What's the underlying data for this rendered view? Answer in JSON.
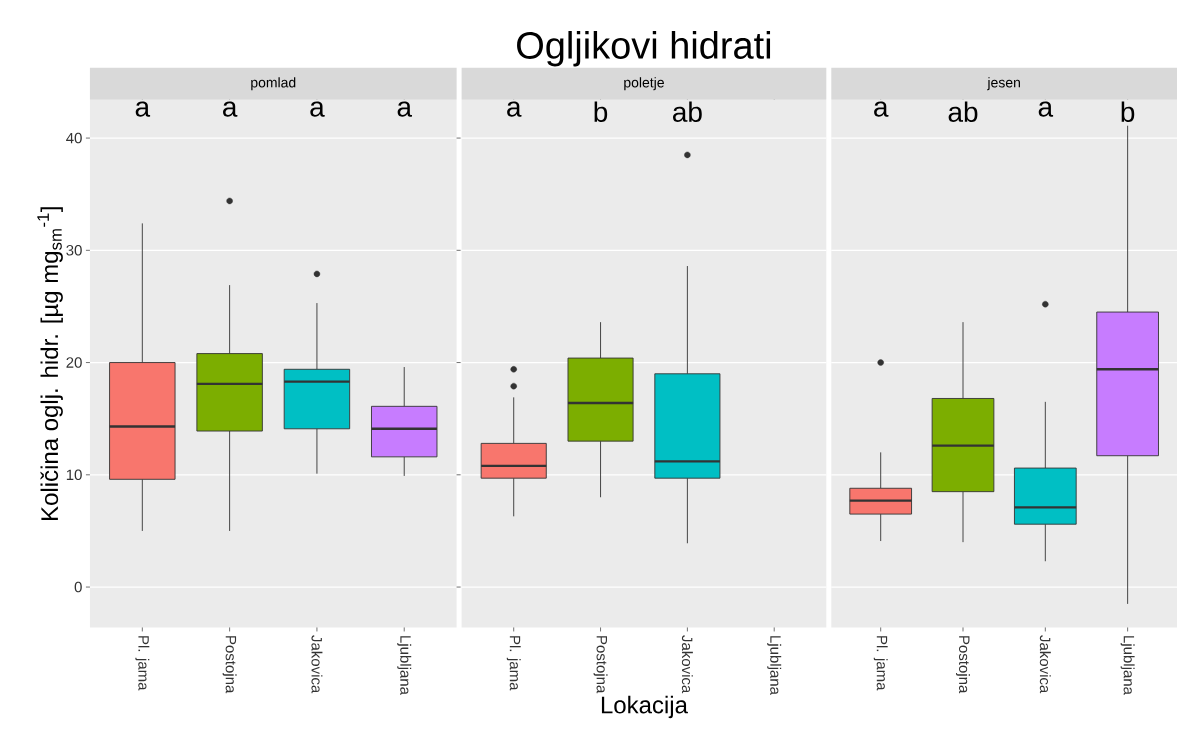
{
  "chart_data": [
    {
      "type": "box",
      "subtitle": "pomlad",
      "ylabel": "Količina oglj. hidr. [µg mg$_{sm}$$^{-1}$]",
      "categories": [
        "Pl. jama",
        "Postojna",
        "Jakovica",
        "Ljubljana"
      ],
      "colors": [
        "#f8766d",
        "#7cae00",
        "#00bfc4",
        "#c77cff"
      ],
      "boxes": [
        {
          "low": 5.0,
          "q1": 9.6,
          "median": 14.3,
          "q3": 20.0,
          "high": 32.4
        },
        {
          "low": 5.0,
          "q1": 13.9,
          "median": 18.1,
          "q3": 20.8,
          "high": 26.9,
          "outliers": [
            34.4
          ]
        },
        {
          "low": 10.1,
          "q1": 14.1,
          "median": 18.3,
          "q3": 19.4,
          "high": 25.3,
          "outliers": [
            27.9
          ]
        },
        {
          "low": 9.9,
          "q1": 11.6,
          "median": 14.1,
          "q3": 16.1,
          "high": 19.6
        }
      ],
      "ylim": [
        -3.6,
        43.4
      ],
      "yticks": [
        0,
        10,
        20,
        30,
        40
      ],
      "grid": "y",
      "annotations": [
        "a",
        "a",
        "a",
        "a"
      ]
    },
    {
      "type": "box",
      "title": "Ogljikovi hidrati",
      "subtitle": "poletje",
      "xlabel": "Lokacija",
      "categories": [
        "Pl. jama",
        "Postojna",
        "Jakovica",
        "Ljubljana"
      ],
      "colors": [
        "#f8766d",
        "#7cae00",
        "#00bfc4",
        "#c77cff"
      ],
      "boxes": [
        {
          "low": 6.3,
          "q1": 9.7,
          "median": 10.8,
          "q3": 12.8,
          "high": 16.9,
          "outliers": [
            17.9,
            19.4
          ]
        },
        {
          "low": 8.0,
          "q1": 13.0,
          "median": 16.4,
          "q3": 20.4,
          "high": 23.6
        },
        {
          "low": 3.9,
          "q1": 9.7,
          "median": 11.2,
          "q3": 19.0,
          "high": 28.6,
          "outliers": [
            38.5
          ]
        },
        null
      ],
      "ylim": [
        -3.6,
        43.4
      ],
      "yticks": [
        0,
        10,
        20,
        30,
        40
      ],
      "grid": "y",
      "tick_labels": "x",
      "annotations": [
        "a",
        "b",
        "ab"
      ]
    },
    {
      "type": "box",
      "subtitle": "jesen",
      "categories": [
        "Pl. jama",
        "Postojna",
        "Jakovica",
        "Ljubljana"
      ],
      "colors": [
        "#f8766d",
        "#7cae00",
        "#00bfc4",
        "#c77cff"
      ],
      "boxes": [
        {
          "low": 4.1,
          "q1": 6.5,
          "median": 7.7,
          "q3": 8.8,
          "high": 12.0,
          "outliers": [
            20.0
          ]
        },
        {
          "low": 4.0,
          "q1": 8.5,
          "median": 12.6,
          "q3": 16.8,
          "high": 23.6
        },
        {
          "low": 2.3,
          "q1": 5.6,
          "median": 7.1,
          "q3": 10.6,
          "high": 16.5,
          "outliers": [
            25.2
          ]
        },
        {
          "low": -1.5,
          "q1": 11.7,
          "median": 19.4,
          "q3": 24.5,
          "high": 41.1
        }
      ],
      "ylim": [
        -3.6,
        43.4
      ],
      "yticks": [
        0,
        10,
        20,
        30,
        40
      ],
      "grid": "y",
      "tick_labels": "x",
      "annotations": [
        "a",
        "ab",
        "a",
        "b"
      ]
    }
  ]
}
